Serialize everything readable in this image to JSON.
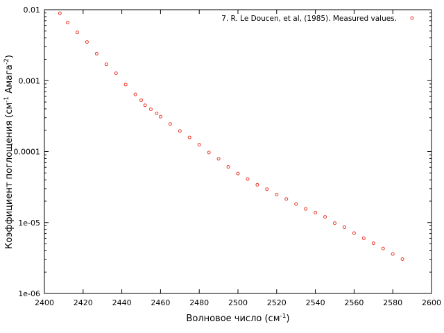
{
  "chart_data": {
    "type": "scatter",
    "title": "",
    "xlabel": {
      "text": "Волновое число (см",
      "sup": "-1",
      "suffix": ")"
    },
    "ylabel": {
      "text1": "Коэффициент поглощения (см",
      "sup1": "-1",
      "text2": " Амага",
      "sup2": "-2",
      "suffix": ")"
    },
    "xlim": [
      2400,
      2600
    ],
    "ylim": [
      1e-06,
      0.01
    ],
    "yscale": "log",
    "x_ticks": [
      "2400",
      "2420",
      "2440",
      "2460",
      "2480",
      "2500",
      "2520",
      "2540",
      "2560",
      "2580",
      "2600"
    ],
    "y_ticks": [
      "1e-06",
      "1e-05",
      "0.0001",
      "0.001",
      "0.01"
    ],
    "grid": false,
    "legend_position": "top-right",
    "series": [
      {
        "name": "7. R. Le Doucen, et al, (1985). Measured values.",
        "color": "#e8392a",
        "marker": "open-circle",
        "x": [
          2408,
          2412,
          2417,
          2422,
          2427,
          2432,
          2437,
          2442,
          2447,
          2450,
          2452,
          2455,
          2458,
          2460,
          2465,
          2470,
          2475,
          2480,
          2485,
          2490,
          2495,
          2500,
          2505,
          2510,
          2515,
          2520,
          2525,
          2530,
          2535,
          2540,
          2545,
          2550,
          2555,
          2560,
          2565,
          2570,
          2575,
          2580,
          2585
        ],
        "y": [
          0.0089,
          0.0066,
          0.0048,
          0.0035,
          0.0024,
          0.0017,
          0.00127,
          0.00088,
          0.00064,
          0.00053,
          0.00045,
          0.000395,
          0.000345,
          0.00031,
          0.000245,
          0.000195,
          0.000158,
          0.000125,
          9.7e-05,
          7.9e-05,
          6.1e-05,
          4.9e-05,
          4.1e-05,
          3.4e-05,
          2.95e-05,
          2.48e-05,
          2.15e-05,
          1.82e-05,
          1.55e-05,
          1.38e-05,
          1.2e-05,
          9.8e-06,
          8.6e-06,
          7.1e-06,
          6e-06,
          5.1e-06,
          4.3e-06,
          3.6e-06,
          3.05e-06
        ]
      }
    ]
  }
}
